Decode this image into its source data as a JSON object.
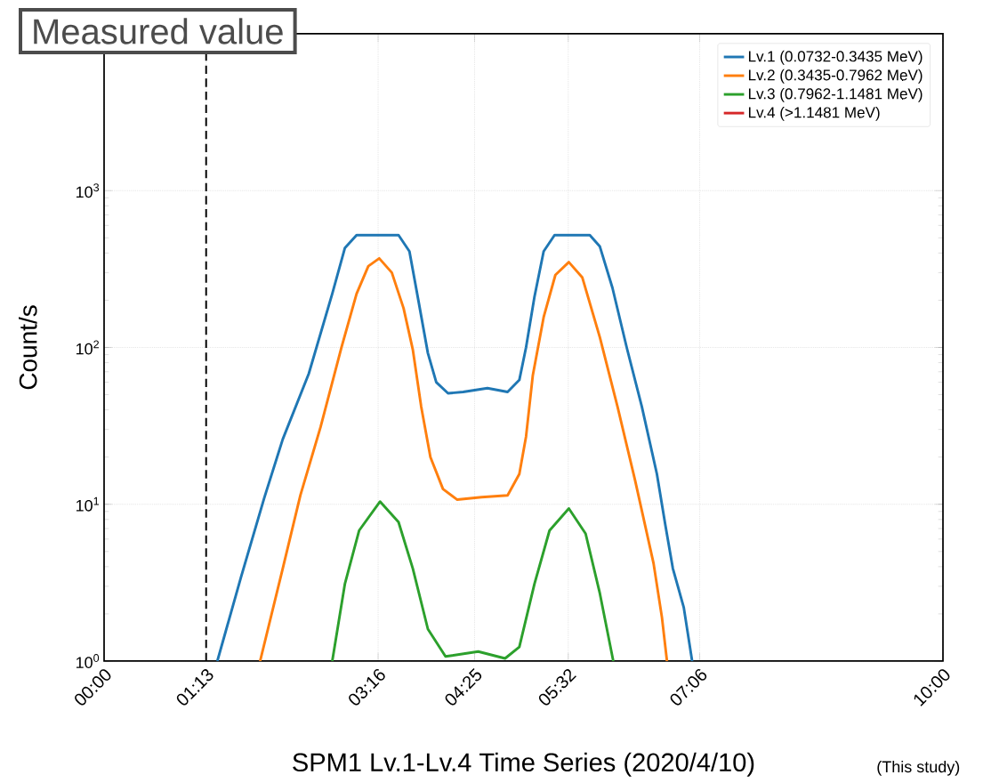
{
  "chart_data": {
    "type": "line",
    "xlabel": "SPM1 Lv.1-Lv.4 Time Series (2020/4/10)",
    "ylabel": "Count/s",
    "annotations": [
      "Measured value",
      "(This study)"
    ],
    "log": true,
    "grid": true,
    "legend": "top right",
    "xlim": [
      0,
      10
    ],
    "xticks": [
      {
        "value": 0,
        "label": "00:00"
      },
      {
        "value": 1.2167,
        "label": "01:13"
      },
      {
        "value": 3.2667,
        "label": "03:16"
      },
      {
        "value": 4.4167,
        "label": "04:25"
      },
      {
        "value": 5.5333,
        "label": "05:32"
      },
      {
        "value": 7.1,
        "label": "07:06"
      },
      {
        "value": 10,
        "label": "10:00"
      }
    ],
    "ylim": [
      1,
      10000
    ],
    "yticks": [
      {
        "value": 1,
        "label": "10$^{0}$"
      },
      {
        "value": 10,
        "label": "10$^{1}$"
      },
      {
        "value": 100,
        "label": "10$^{2}$"
      },
      {
        "value": 1000,
        "label": "10$^{3}$"
      }
    ],
    "ref_lines": [
      {
        "axis": "x",
        "value": 1.2167,
        "color": "#000000",
        "line_style": "dashed"
      }
    ],
    "series": [
      {
        "name": "Lv.1 (0.0732-0.3435 MeV)",
        "color": "#1f77b4",
        "x": [
          1.35,
          1.63,
          1.91,
          2.13,
          2.44,
          2.72,
          2.87,
          3.01,
          3.51,
          3.64,
          3.75,
          3.86,
          3.96,
          4.1,
          4.28,
          4.57,
          4.81,
          4.95,
          5.03,
          5.13,
          5.24,
          5.37,
          5.79,
          5.91,
          6.06,
          6.23,
          6.41,
          6.59,
          6.69,
          6.78,
          6.91,
          7.01
        ],
        "values": [
          1,
          3.4,
          11,
          26,
          68,
          220,
          430,
          520,
          520,
          410,
          195,
          92,
          60,
          51,
          52,
          55,
          52,
          62,
          100,
          210,
          410,
          520,
          520,
          440,
          240,
          100,
          42,
          15.6,
          7.4,
          3.9,
          2.2,
          1
        ]
      },
      {
        "name": "Lv.2 (0.3435-0.7962 MeV)",
        "color": "#ff7f0e",
        "x": [
          1.86,
          2.13,
          2.34,
          2.58,
          2.83,
          3.01,
          3.15,
          3.28,
          3.43,
          3.57,
          3.68,
          3.78,
          3.89,
          4.04,
          4.21,
          4.5,
          4.81,
          4.95,
          5.03,
          5.11,
          5.24,
          5.38,
          5.54,
          5.7,
          5.91,
          6.12,
          6.33,
          6.55,
          6.65,
          6.71
        ],
        "values": [
          1,
          3.9,
          11.4,
          31,
          100,
          220,
          330,
          370,
          300,
          178,
          97,
          42,
          20,
          12.5,
          10.7,
          11.1,
          11.4,
          15.6,
          27,
          66,
          156,
          290,
          350,
          280,
          116,
          42,
          14.2,
          4.2,
          1.9,
          1
        ]
      },
      {
        "name": "Lv.3 (0.7962-1.1481 MeV)",
        "color": "#2ca02c",
        "x": [
          2.72,
          2.87,
          3.04,
          3.29,
          3.51,
          3.68,
          3.86,
          4.07,
          4.46,
          4.78,
          4.95,
          5.13,
          5.31,
          5.54,
          5.74,
          5.91,
          6.07
        ],
        "values": [
          1,
          3.1,
          6.8,
          10.4,
          7.7,
          3.9,
          1.6,
          1.07,
          1.15,
          1.04,
          1.23,
          3.1,
          6.8,
          9.4,
          6.5,
          2.7,
          1
        ]
      },
      {
        "name": "Lv.4 (>1.1481 MeV)",
        "color": "#d62728"
      }
    ]
  }
}
